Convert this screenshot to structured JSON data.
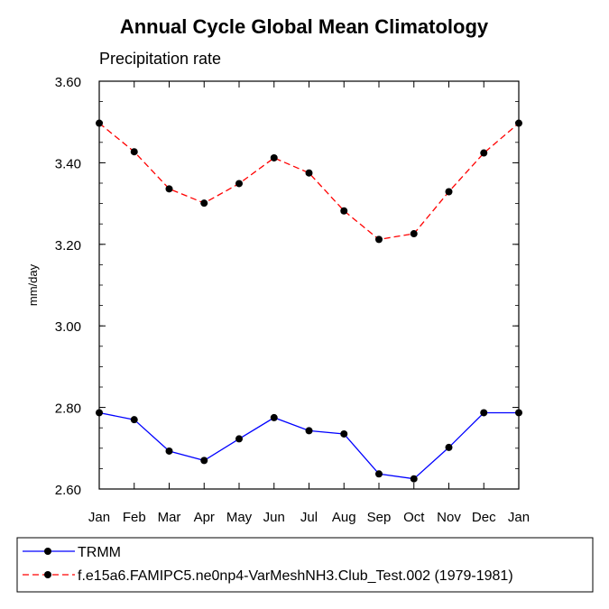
{
  "chart_data": {
    "type": "line",
    "title": "Annual Cycle Global Mean Climatology",
    "subtitle": "Precipitation rate",
    "xlabel": "",
    "ylabel": "mm/day",
    "categories": [
      "Jan",
      "Feb",
      "Mar",
      "Apr",
      "May",
      "Jun",
      "Jul",
      "Aug",
      "Sep",
      "Oct",
      "Nov",
      "Dec",
      "Jan"
    ],
    "ylim": [
      2.6,
      3.6
    ],
    "yticks": [
      2.6,
      2.8,
      3.0,
      3.2,
      3.4,
      3.6
    ],
    "ytick_labels": [
      "2.60",
      "2.80",
      "3.00",
      "3.20",
      "3.40",
      "3.60"
    ],
    "legend_position": "bottom",
    "series": [
      {
        "name": "TRMM",
        "color": "#0000ff",
        "style": "solid",
        "marker": "circle",
        "values": [
          2.787,
          2.77,
          2.693,
          2.67,
          2.723,
          2.775,
          2.743,
          2.735,
          2.637,
          2.625,
          2.702,
          2.787,
          2.787
        ]
      },
      {
        "name": "f.e15a6.FAMIPC5.ne0np4-VarMeshNH3.Club_Test.002 (1979-1981)",
        "color": "#ff0000",
        "style": "dashed",
        "marker": "circle",
        "values": [
          3.497,
          3.427,
          3.336,
          3.301,
          3.349,
          3.412,
          3.375,
          3.282,
          3.212,
          3.226,
          3.329,
          3.424,
          3.497
        ]
      }
    ]
  }
}
